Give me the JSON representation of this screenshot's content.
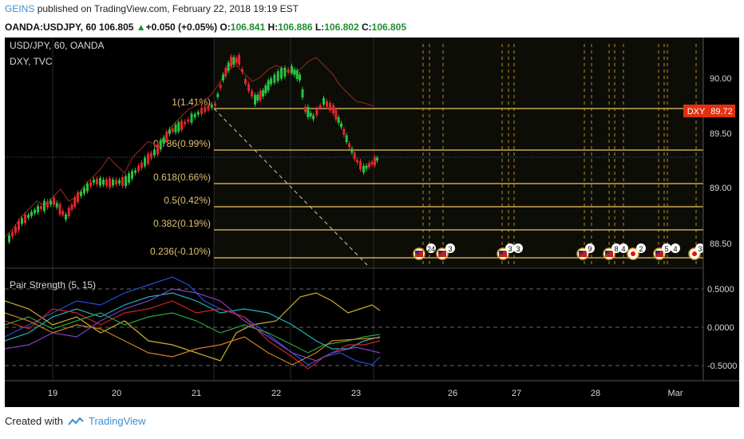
{
  "header": {
    "publisher": "GEINS",
    "published_text": "published on TradingView.com, February 22, 2018 19:19 EST",
    "symbol": "OANDA:USDJPY, 60",
    "last": "106.805",
    "change": "+0.050 (+0.05%)",
    "o_label": "O:",
    "o": "106.841",
    "h_label": "H:",
    "h": "106.886",
    "l_label": "L:",
    "l": "106.802",
    "c_label": "C:",
    "c": "106.805"
  },
  "chart": {
    "title": "USD/JPY, 60, OANDA",
    "overlay": "DXY, TVC",
    "dxy_tag": "DXY",
    "dxy_value": "89.72",
    "price_ticks": [
      "90.00",
      "89.50",
      "89.00",
      "88.50"
    ],
    "fib_levels": [
      "1(1.41%)",
      "0.786(0.99%)",
      "0.618(0.66%)",
      "0.5(0.42%)",
      "0.382(0.19%)",
      "0.236(-0.10%)"
    ],
    "event_counts": [
      "24",
      "2",
      "3",
      "3",
      "3",
      "9",
      "8",
      "4",
      "2",
      "5",
      "4",
      "3"
    ]
  },
  "indicator": {
    "title": "Pair Strength (5, 15)",
    "ticks": [
      "0.5000",
      "0.0000",
      "-0.5000"
    ]
  },
  "time_axis": [
    "19",
    "20",
    "21",
    "22",
    "23",
    "26",
    "27",
    "28",
    "Mar"
  ],
  "footer": {
    "created_with": "Created with",
    "brand": "TradingView"
  },
  "colors": {
    "bull": "#26c341",
    "bear": "#e3242b",
    "fib": "#c8a84e",
    "dxy": "#8a2a1a",
    "accent": "#3b8ed0"
  }
}
